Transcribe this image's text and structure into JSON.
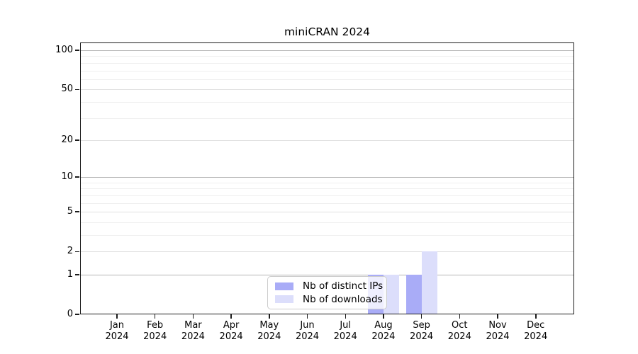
{
  "title": "miniCRAN 2024",
  "chart_data": {
    "type": "bar",
    "title": "miniCRAN 2024",
    "categories": [
      "Jan",
      "Feb",
      "Mar",
      "Apr",
      "May",
      "Jun",
      "Jul",
      "Aug",
      "Sep",
      "Oct",
      "Nov",
      "Dec"
    ],
    "year_label": "2024",
    "series": [
      {
        "name": "Nb of distinct IPs",
        "color": "#a9acf7",
        "values": [
          0,
          0,
          0,
          0,
          0,
          0,
          0,
          1,
          1,
          0,
          0,
          0
        ]
      },
      {
        "name": "Nb of downloads",
        "color": "#dcdefb",
        "values": [
          0,
          0,
          0,
          0,
          0,
          0,
          0,
          1,
          2,
          0,
          0,
          0
        ]
      }
    ],
    "y_axis": {
      "scale": "log1p",
      "tick_values": [
        0,
        1,
        2,
        5,
        10,
        20,
        50,
        100
      ],
      "tick_labels": [
        "0",
        "1",
        "2",
        "5",
        "10",
        "20",
        "50",
        "100"
      ],
      "max": 100,
      "major_gridlines": [
        1,
        10,
        100
      ],
      "medium_gridlines": [
        2,
        5,
        20,
        50
      ],
      "minor_gridlines": [
        3,
        4,
        6,
        7,
        8,
        9,
        30,
        40,
        60,
        70,
        80,
        90
      ]
    },
    "xlabel": "",
    "ylabel": "",
    "grid": "horizontal",
    "legend_position": "lower center"
  }
}
